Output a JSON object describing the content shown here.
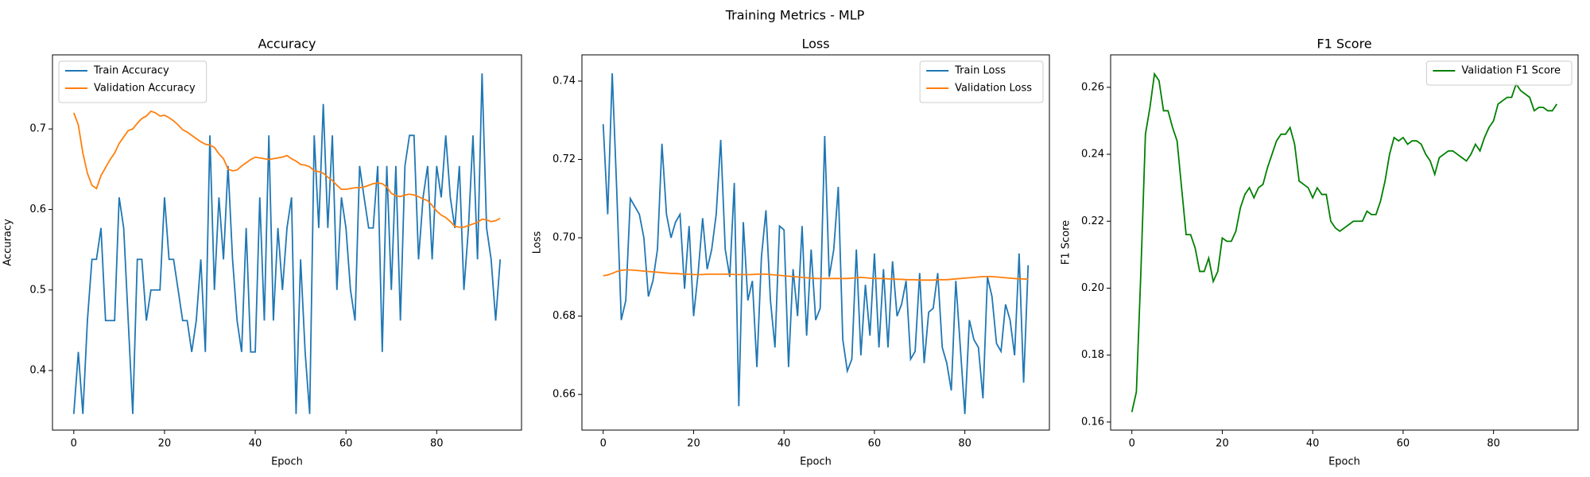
{
  "title": "Training Metrics - MLP",
  "chart_data": [
    {
      "type": "line",
      "title": "Accuracy",
      "xlabel": "Epoch",
      "ylabel": "Accuracy",
      "legend": "upper left",
      "grid": false,
      "xlim": [
        -4.7,
        98.7
      ],
      "ylim": [
        0.326,
        0.792
      ],
      "xticks": [
        0,
        20,
        40,
        60,
        80
      ],
      "yticks": [
        0.4,
        0.5,
        0.6,
        0.7
      ],
      "x": [
        0,
        1,
        2,
        3,
        4,
        5,
        6,
        7,
        8,
        9,
        10,
        11,
        12,
        13,
        14,
        15,
        16,
        17,
        18,
        19,
        20,
        21,
        22,
        23,
        24,
        25,
        26,
        27,
        28,
        29,
        30,
        31,
        32,
        33,
        34,
        35,
        36,
        37,
        38,
        39,
        40,
        41,
        42,
        43,
        44,
        45,
        46,
        47,
        48,
        49,
        50,
        51,
        52,
        53,
        54,
        55,
        56,
        57,
        58,
        59,
        60,
        61,
        62,
        63,
        64,
        65,
        66,
        67,
        68,
        69,
        70,
        71,
        72,
        73,
        74,
        75,
        76,
        77,
        78,
        79,
        80,
        81,
        82,
        83,
        84,
        85,
        86,
        87,
        88,
        89,
        90,
        91,
        92,
        93,
        94
      ],
      "series": [
        {
          "name": "Train Accuracy",
          "color": "#1f77b4",
          "values": [
            0.346,
            0.423,
            0.346,
            0.462,
            0.538,
            0.538,
            0.577,
            0.462,
            0.462,
            0.462,
            0.615,
            0.577,
            0.462,
            0.346,
            0.538,
            0.538,
            0.462,
            0.5,
            0.5,
            0.5,
            0.615,
            0.538,
            0.538,
            0.5,
            0.462,
            0.462,
            0.423,
            0.462,
            0.538,
            0.423,
            0.692,
            0.5,
            0.615,
            0.538,
            0.654,
            0.538,
            0.462,
            0.423,
            0.577,
            0.423,
            0.423,
            0.615,
            0.462,
            0.692,
            0.462,
            0.577,
            0.5,
            0.577,
            0.615,
            0.346,
            0.538,
            0.423,
            0.346,
            0.692,
            0.577,
            0.731,
            0.577,
            0.692,
            0.5,
            0.615,
            0.577,
            0.5,
            0.462,
            0.654,
            0.615,
            0.577,
            0.577,
            0.654,
            0.423,
            0.654,
            0.5,
            0.654,
            0.462,
            0.654,
            0.692,
            0.692,
            0.538,
            0.615,
            0.654,
            0.538,
            0.654,
            0.615,
            0.692,
            0.615,
            0.577,
            0.654,
            0.5,
            0.577,
            0.692,
            0.538,
            0.769,
            0.577,
            0.538,
            0.462,
            0.538
          ]
        },
        {
          "name": "Validation Accuracy",
          "color": "#ff7f0e",
          "values": [
            0.72,
            0.705,
            0.67,
            0.645,
            0.63,
            0.626,
            0.642,
            0.652,
            0.662,
            0.67,
            0.682,
            0.69,
            0.698,
            0.7,
            0.707,
            0.713,
            0.716,
            0.722,
            0.72,
            0.716,
            0.717,
            0.714,
            0.71,
            0.705,
            0.699,
            0.696,
            0.692,
            0.688,
            0.684,
            0.681,
            0.68,
            0.677,
            0.669,
            0.663,
            0.65,
            0.648,
            0.649,
            0.654,
            0.658,
            0.662,
            0.665,
            0.664,
            0.663,
            0.662,
            0.663,
            0.664,
            0.665,
            0.667,
            0.663,
            0.66,
            0.656,
            0.655,
            0.653,
            0.648,
            0.647,
            0.645,
            0.64,
            0.636,
            0.63,
            0.625,
            0.625,
            0.626,
            0.627,
            0.627,
            0.628,
            0.63,
            0.632,
            0.633,
            0.632,
            0.628,
            0.62,
            0.617,
            0.616,
            0.618,
            0.619,
            0.618,
            0.616,
            0.613,
            0.611,
            0.605,
            0.598,
            0.593,
            0.59,
            0.585,
            0.579,
            0.578,
            0.578,
            0.58,
            0.582,
            0.584,
            0.588,
            0.587,
            0.585,
            0.586,
            0.589
          ]
        }
      ]
    },
    {
      "type": "line",
      "title": "Loss",
      "xlabel": "Epoch",
      "ylabel": "Loss",
      "legend": "upper right",
      "grid": false,
      "xlim": [
        -4.7,
        98.7
      ],
      "ylim": [
        0.6509,
        0.7467
      ],
      "xticks": [
        0,
        20,
        40,
        60,
        80
      ],
      "yticks": [
        0.66,
        0.68,
        {
          "value": 0.7,
          "label": "0.70"
        },
        0.72,
        0.74
      ],
      "x": [
        0,
        1,
        2,
        3,
        4,
        5,
        6,
        7,
        8,
        9,
        10,
        11,
        12,
        13,
        14,
        15,
        16,
        17,
        18,
        19,
        20,
        21,
        22,
        23,
        24,
        25,
        26,
        27,
        28,
        29,
        30,
        31,
        32,
        33,
        34,
        35,
        36,
        37,
        38,
        39,
        40,
        41,
        42,
        43,
        44,
        45,
        46,
        47,
        48,
        49,
        50,
        51,
        52,
        53,
        54,
        55,
        56,
        57,
        58,
        59,
        60,
        61,
        62,
        63,
        64,
        65,
        66,
        67,
        68,
        69,
        70,
        71,
        72,
        73,
        74,
        75,
        76,
        77,
        78,
        79,
        80,
        81,
        82,
        83,
        84,
        85,
        86,
        87,
        88,
        89,
        90,
        91,
        92,
        93,
        94
      ],
      "series": [
        {
          "name": "Train Loss",
          "color": "#1f77b4",
          "values": [
            0.729,
            0.706,
            0.742,
            0.712,
            0.679,
            0.684,
            0.71,
            0.708,
            0.706,
            0.7,
            0.685,
            0.689,
            0.697,
            0.724,
            0.706,
            0.7,
            0.704,
            0.706,
            0.687,
            0.703,
            0.68,
            0.691,
            0.705,
            0.692,
            0.697,
            0.706,
            0.725,
            0.697,
            0.69,
            0.714,
            0.657,
            0.704,
            0.684,
            0.689,
            0.667,
            0.695,
            0.707,
            0.684,
            0.672,
            0.703,
            0.702,
            0.667,
            0.692,
            0.68,
            0.703,
            0.675,
            0.697,
            0.679,
            0.682,
            0.726,
            0.69,
            0.697,
            0.713,
            0.674,
            0.666,
            0.669,
            0.697,
            0.67,
            0.688,
            0.675,
            0.696,
            0.672,
            0.692,
            0.672,
            0.694,
            0.68,
            0.683,
            0.689,
            0.669,
            0.671,
            0.691,
            0.668,
            0.681,
            0.682,
            0.691,
            0.672,
            0.668,
            0.661,
            0.689,
            0.672,
            0.655,
            0.679,
            0.674,
            0.672,
            0.659,
            0.69,
            0.685,
            0.673,
            0.671,
            0.683,
            0.679,
            0.67,
            0.696,
            0.663,
            0.693
          ]
        },
        {
          "name": "Validation Loss",
          "color": "#ff7f0e",
          "values": [
            0.6903,
            0.6905,
            0.6909,
            0.6914,
            0.6917,
            0.6918,
            0.6918,
            0.6917,
            0.6916,
            0.6915,
            0.6914,
            0.6913,
            0.6912,
            0.6911,
            0.691,
            0.6909,
            0.6909,
            0.6908,
            0.6907,
            0.6907,
            0.6906,
            0.6906,
            0.6906,
            0.6907,
            0.6907,
            0.6907,
            0.6907,
            0.6907,
            0.6907,
            0.6906,
            0.6906,
            0.6906,
            0.6906,
            0.6906,
            0.6907,
            0.6907,
            0.6907,
            0.6906,
            0.6905,
            0.6904,
            0.6903,
            0.6902,
            0.6901,
            0.69,
            0.6899,
            0.6898,
            0.6897,
            0.6896,
            0.6896,
            0.6896,
            0.6896,
            0.6896,
            0.6896,
            0.6896,
            0.6896,
            0.6897,
            0.6898,
            0.6899,
            0.6898,
            0.6897,
            0.6896,
            0.6896,
            0.6896,
            0.6895,
            0.6895,
            0.6894,
            0.6894,
            0.6893,
            0.6893,
            0.6893,
            0.6892,
            0.6892,
            0.6892,
            0.6892,
            0.6893,
            0.6893,
            0.6893,
            0.6894,
            0.6895,
            0.6896,
            0.6897,
            0.6898,
            0.6899,
            0.69,
            0.6901,
            0.6901,
            0.6901,
            0.69,
            0.6899,
            0.6898,
            0.6897,
            0.6896,
            0.6895,
            0.6895,
            0.6894
          ]
        }
      ]
    },
    {
      "type": "line",
      "title": "F1 Score",
      "xlabel": "Epoch",
      "ylabel": "F1 Score",
      "legend": "upper right",
      "grid": false,
      "xlim": [
        -4.7,
        98.7
      ],
      "ylim": [
        0.1576,
        0.2697
      ],
      "xticks": [
        0,
        20,
        40,
        60,
        80
      ],
      "yticks": [
        0.16,
        0.18,
        {
          "value": 0.2,
          "label": "0.20"
        },
        0.22,
        0.24,
        0.26
      ],
      "x": [
        0,
        1,
        2,
        3,
        4,
        5,
        6,
        7,
        8,
        9,
        10,
        11,
        12,
        13,
        14,
        15,
        16,
        17,
        18,
        19,
        20,
        21,
        22,
        23,
        24,
        25,
        26,
        27,
        28,
        29,
        30,
        31,
        32,
        33,
        34,
        35,
        36,
        37,
        38,
        39,
        40,
        41,
        42,
        43,
        44,
        45,
        46,
        47,
        48,
        49,
        50,
        51,
        52,
        53,
        54,
        55,
        56,
        57,
        58,
        59,
        60,
        61,
        62,
        63,
        64,
        65,
        66,
        67,
        68,
        69,
        70,
        71,
        72,
        73,
        74,
        75,
        76,
        77,
        78,
        79,
        80,
        81,
        82,
        83,
        84,
        85,
        86,
        87,
        88,
        89,
        90,
        91,
        92,
        93,
        94
      ],
      "series": [
        {
          "name": "Validation F1 Score",
          "color": "#008000",
          "values": [
            0.163,
            0.169,
            0.205,
            0.246,
            0.254,
            0.264,
            0.262,
            0.253,
            0.253,
            0.248,
            0.244,
            0.23,
            0.216,
            0.216,
            0.212,
            0.205,
            0.205,
            0.209,
            0.202,
            0.205,
            0.215,
            0.214,
            0.214,
            0.217,
            0.224,
            0.228,
            0.23,
            0.227,
            0.23,
            0.231,
            0.236,
            0.24,
            0.244,
            0.246,
            0.246,
            0.248,
            0.243,
            0.232,
            0.231,
            0.23,
            0.227,
            0.23,
            0.228,
            0.228,
            0.22,
            0.218,
            0.217,
            0.218,
            0.219,
            0.22,
            0.22,
            0.22,
            0.223,
            0.222,
            0.222,
            0.226,
            0.232,
            0.24,
            0.245,
            0.244,
            0.245,
            0.243,
            0.244,
            0.244,
            0.243,
            0.24,
            0.238,
            0.234,
            0.239,
            0.24,
            0.241,
            0.241,
            0.24,
            0.239,
            0.238,
            0.24,
            0.243,
            0.241,
            0.245,
            0.248,
            0.25,
            0.255,
            0.256,
            0.257,
            0.257,
            0.261,
            0.259,
            0.258,
            0.257,
            0.253,
            0.254,
            0.254,
            0.253,
            0.253,
            0.255
          ]
        }
      ]
    }
  ]
}
